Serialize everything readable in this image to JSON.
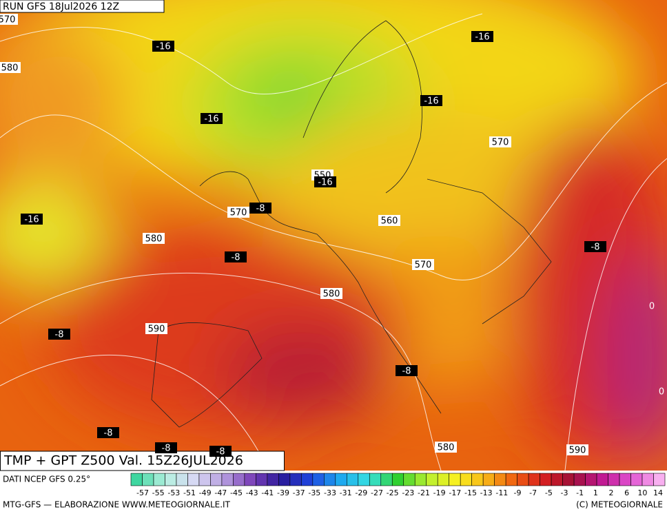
{
  "header": {
    "run": "RUN GFS 18Jul2026 12Z",
    "title": "TMP + GPT Z500 Val. 15Z26JUL2026"
  },
  "map_labels": [
    "570",
    "-16",
    "-16",
    "580",
    "-16",
    "-16",
    "570",
    "550",
    "-16",
    "570",
    "-8",
    "-16",
    "560",
    "580",
    "-8",
    "-8",
    "570",
    "580",
    "0",
    "-8",
    "590",
    "-8",
    "0",
    "-8",
    "-8",
    "-8",
    "580",
    "590"
  ],
  "footer": {
    "source": "DATI NCEP GFS 0.25°",
    "credit": "MTG-GFS — ELABORAZIONE WWW.METEOGIORNALE.IT",
    "copyright": "(C) METEOGIORNALE"
  },
  "scale_labels": [
    "-57",
    "-55",
    "-53",
    "-51",
    "-49",
    "-47",
    "-45",
    "-43",
    "-41",
    "-39",
    "-37",
    "-35",
    "-33",
    "-31",
    "-29",
    "-27",
    "-25",
    "-23",
    "-21",
    "-19",
    "-17",
    "-15",
    "-13",
    "-11",
    "-9",
    "-7",
    "-5",
    "-3",
    "-1",
    "1",
    "2",
    "6",
    "10",
    "14"
  ]
}
